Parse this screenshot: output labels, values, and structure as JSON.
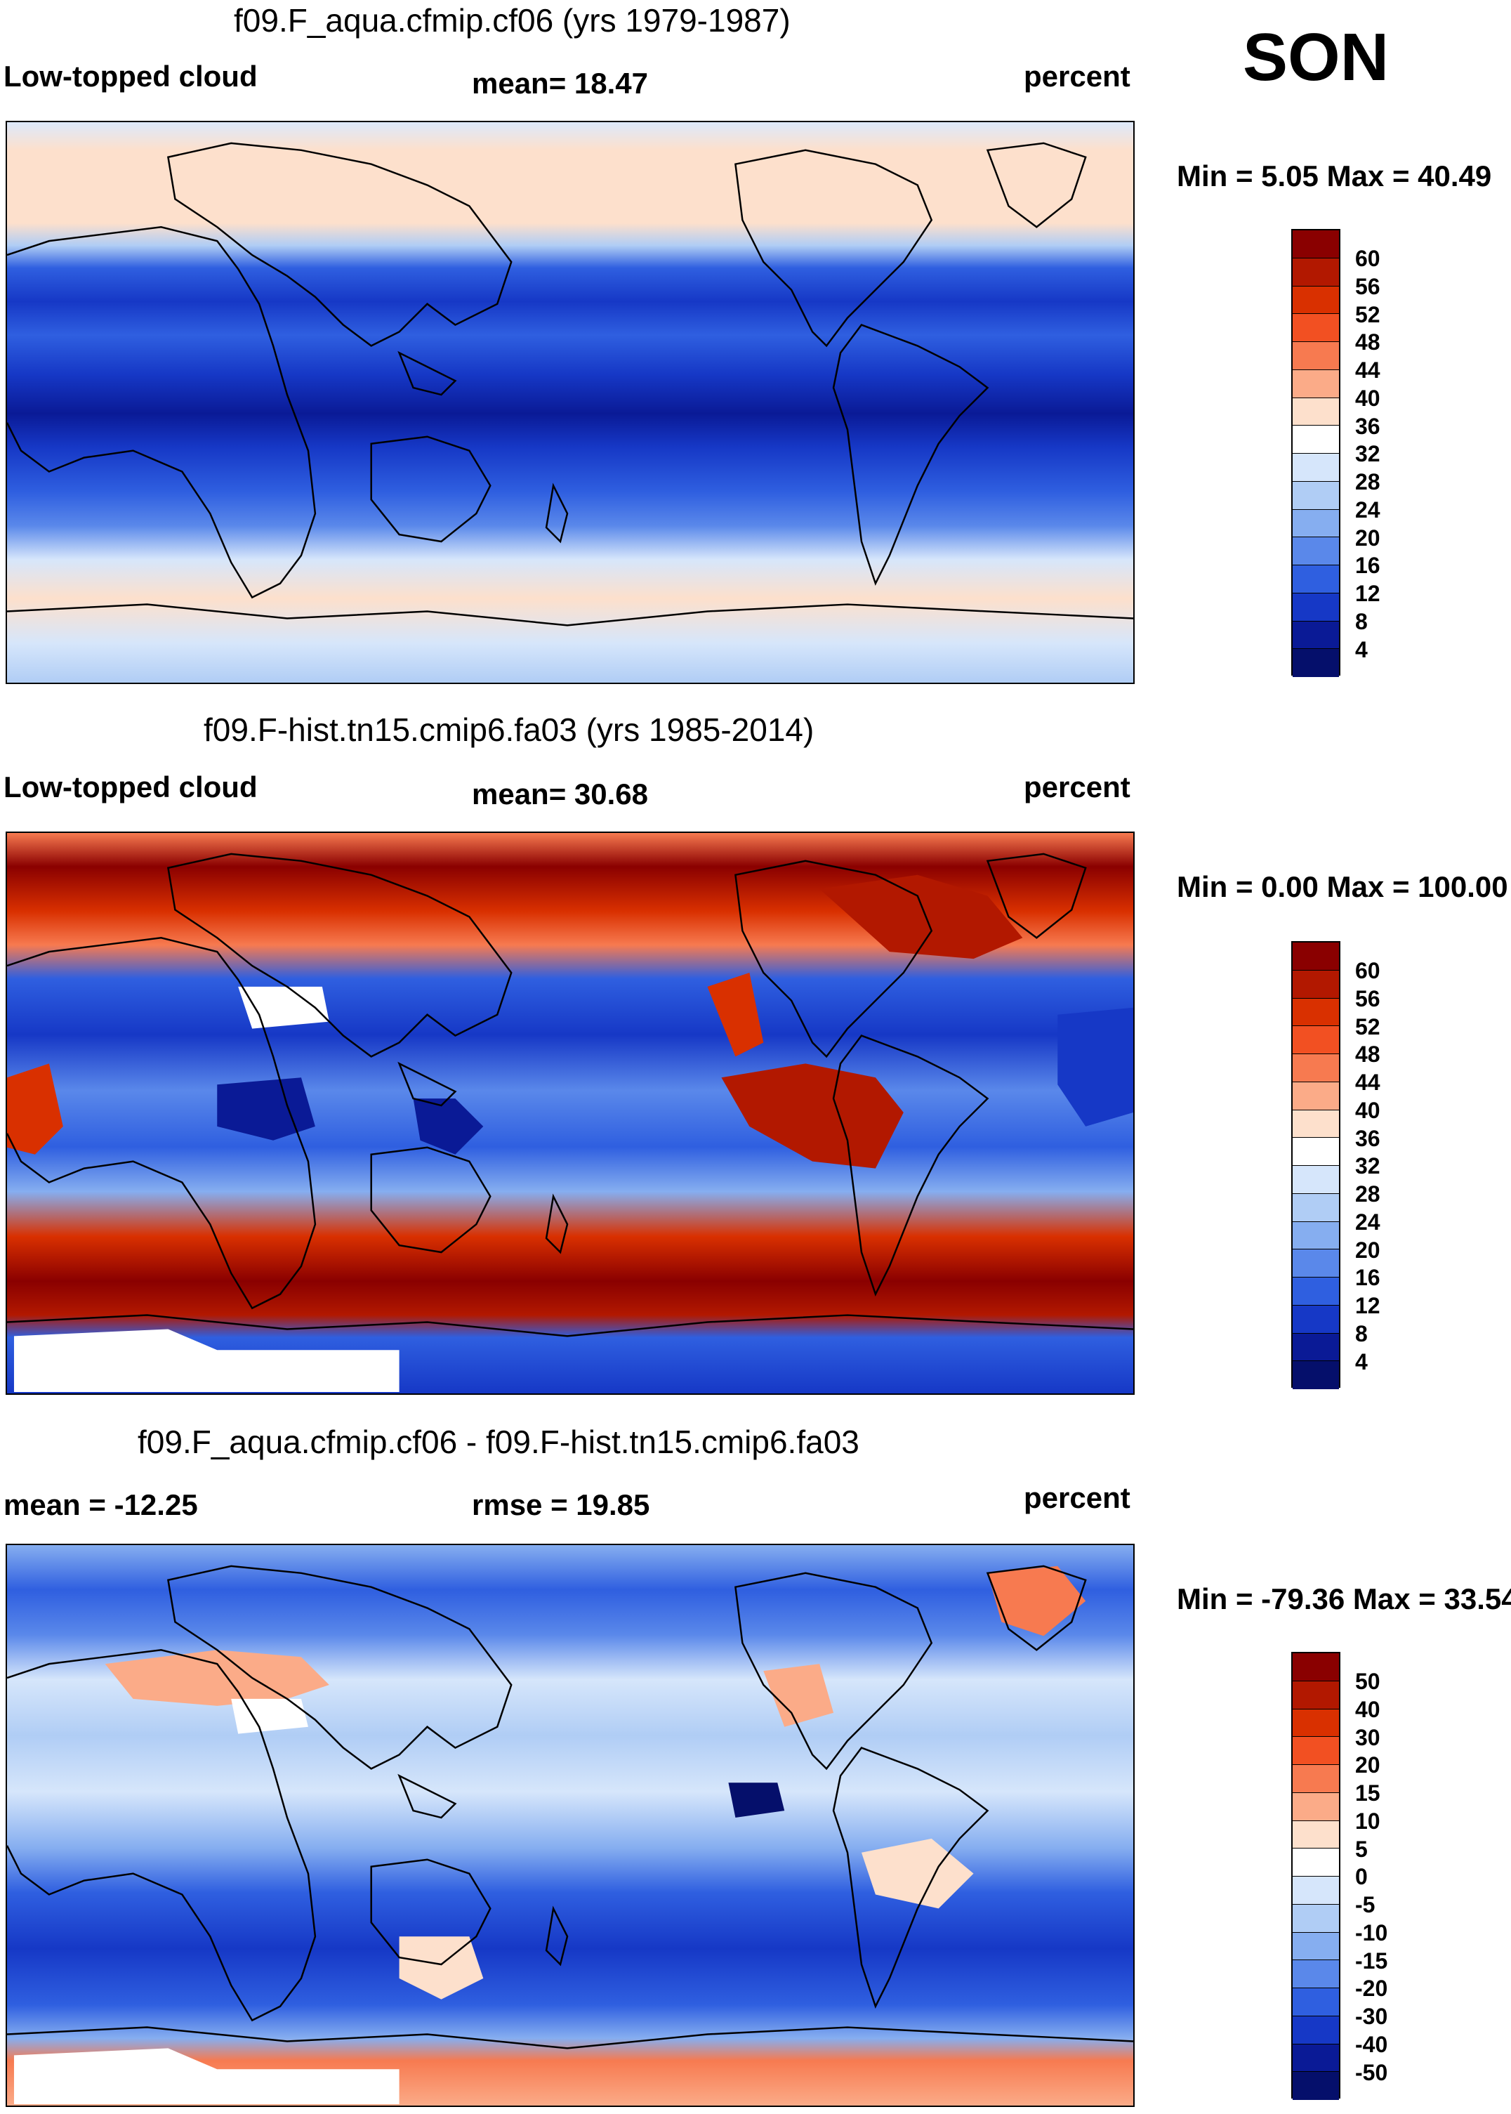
{
  "season": "SON",
  "panels": [
    {
      "title": "f09.F_aqua.cfmip.cf06 (yrs 1979-1987)",
      "left_label": "Low-topped cloud",
      "center_label": "mean=  18.47",
      "right_label": "percent",
      "minmax": "Min =   5.05 Max =  40.49",
      "legend_levels": [
        "60",
        "56",
        "52",
        "48",
        "44",
        "40",
        "36",
        "32",
        "28",
        "24",
        "20",
        "16",
        "12",
        "8",
        "4"
      ]
    },
    {
      "title": "f09.F-hist.tn15.cmip6.fa03 (yrs 1985-2014)",
      "left_label": "Low-topped cloud",
      "center_label": "mean=  30.68",
      "right_label": "percent",
      "minmax": "Min =   0.00 Max = 100.00",
      "legend_levels": [
        "60",
        "56",
        "52",
        "48",
        "44",
        "40",
        "36",
        "32",
        "28",
        "24",
        "20",
        "16",
        "12",
        "8",
        "4"
      ]
    },
    {
      "title": "f09.F_aqua.cfmip.cf06 - f09.F-hist.tn15.cmip6.fa03",
      "left_label": "mean = -12.25",
      "center_label": "rmse =  19.85",
      "right_label": "percent",
      "minmax": "Min = -79.36 Max =  33.54",
      "legend_levels": [
        "50",
        "40",
        "30",
        "20",
        "15",
        "10",
        "5",
        "0",
        "-5",
        "-10",
        "-15",
        "-20",
        "-30",
        "-40",
        "-50"
      ]
    }
  ],
  "colors": {
    "abs_scale": [
      "#8a0000",
      "#b21800",
      "#d93000",
      "#f25022",
      "#f77a50",
      "#fbab88",
      "#fde0cc",
      "#ffffff",
      "#d6e6fb",
      "#b0cdf5",
      "#86aef0",
      "#5a88ea",
      "#2f5fe0",
      "#1638c6",
      "#0a1a96",
      "#050f6b"
    ],
    "diff_scale": [
      "#8a0000",
      "#b21800",
      "#d93000",
      "#f25022",
      "#f77a50",
      "#fbab88",
      "#fde0cc",
      "#ffffff",
      "#d6e6fb",
      "#b0cdf5",
      "#86aef0",
      "#5a88ea",
      "#2f5fe0",
      "#1638c6",
      "#0a1a96",
      "#050f6b"
    ]
  }
}
